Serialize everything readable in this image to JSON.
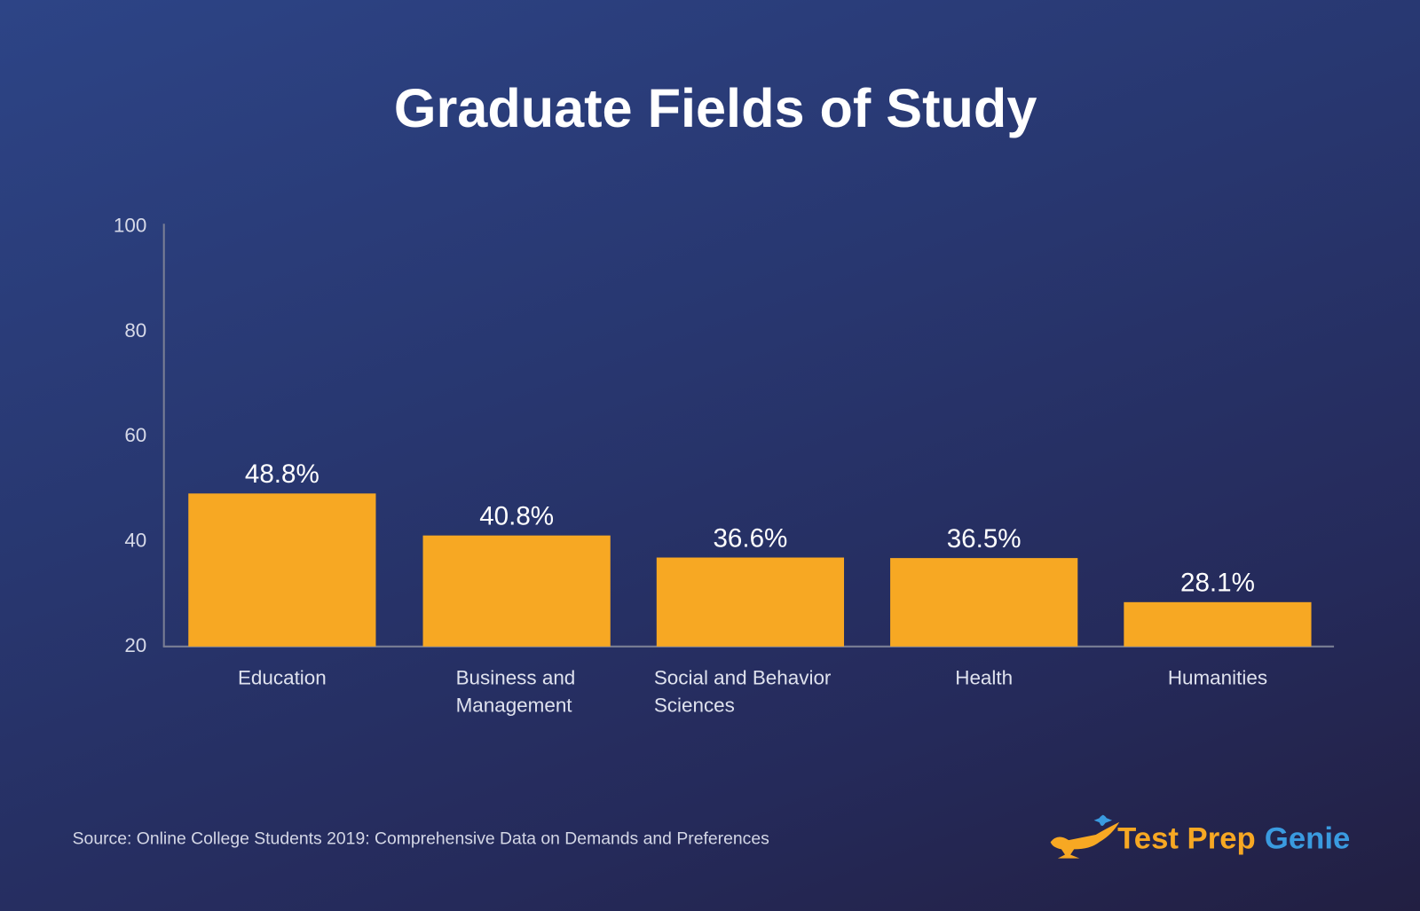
{
  "chart_data": {
    "type": "bar",
    "title": "Graduate Fields of Study",
    "categories": [
      [
        "Education"
      ],
      [
        "Business and",
        "Management"
      ],
      [
        "Social and Behavior",
        "Sciences"
      ],
      [
        "Health"
      ],
      [
        "Humanities"
      ]
    ],
    "values": [
      48.8,
      40.8,
      36.6,
      36.5,
      28.1
    ],
    "value_labels": [
      "48.8%",
      "40.8%",
      "36.6%",
      "36.5%",
      "28.1%"
    ],
    "yticks": [
      "100",
      "80",
      "60",
      "40",
      "20"
    ],
    "ylim": [
      20,
      100
    ],
    "grid": false,
    "bar_color": "#f7a823"
  },
  "source": "Source: Online College Students 2019: Comprehensive Data on Demands and Preferences",
  "logo": {
    "word1": "Test Prep",
    "word2": "Genie",
    "color1": "#f7a823",
    "color2": "#3a9be0"
  }
}
